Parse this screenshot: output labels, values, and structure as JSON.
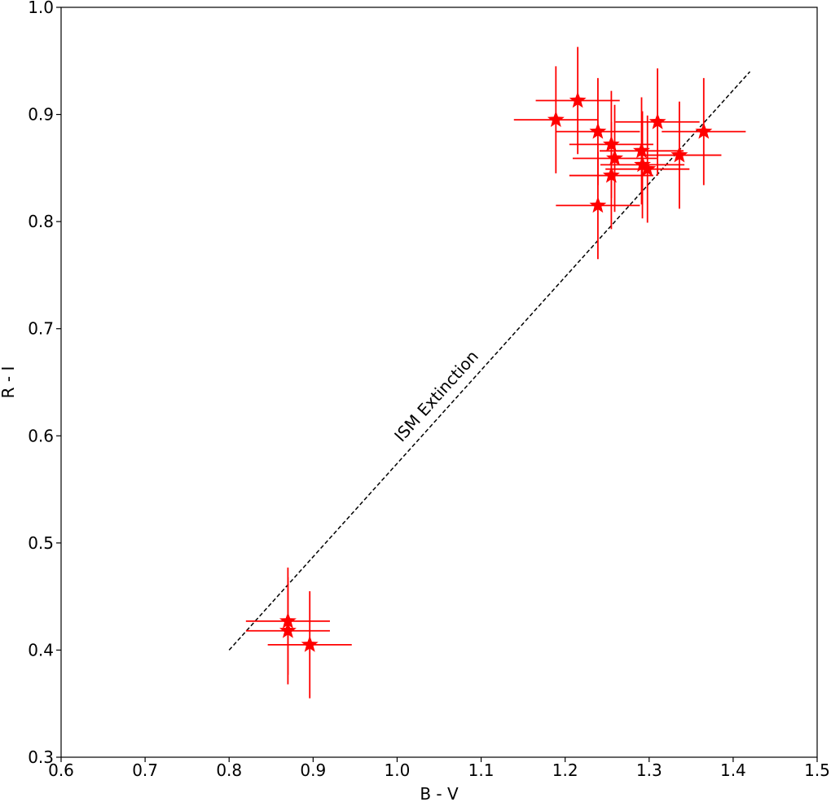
{
  "chart_data": {
    "type": "scatter",
    "xlabel": "B - V",
    "ylabel": "R - I",
    "x": [
      1.189,
      1.215,
      1.239,
      1.255,
      1.259,
      1.255,
      1.239,
      1.291,
      1.292,
      1.298,
      1.31,
      1.336,
      1.365,
      0.87,
      0.87,
      0.896
    ],
    "values": [
      0.895,
      0.913,
      0.884,
      0.872,
      0.859,
      0.843,
      0.815,
      0.866,
      0.853,
      0.849,
      0.893,
      0.862,
      0.884,
      0.427,
      0.418,
      0.405
    ],
    "xerr": [
      0.05,
      0.05,
      0.05,
      0.05,
      0.05,
      0.05,
      0.05,
      0.05,
      0.05,
      0.05,
      0.05,
      0.05,
      0.05,
      0.05,
      0.05,
      0.05
    ],
    "yerr": [
      0.05,
      0.05,
      0.05,
      0.05,
      0.05,
      0.05,
      0.05,
      0.05,
      0.05,
      0.05,
      0.05,
      0.05,
      0.05,
      0.05,
      0.05,
      0.05
    ],
    "color": "#ff0000",
    "reference_line": {
      "label": "ISM Extinction",
      "x": [
        0.8,
        1.42
      ],
      "y": [
        0.4,
        0.94
      ],
      "color": "#000000"
    },
    "xlim": [
      0.6,
      1.5
    ],
    "ylim": [
      0.3,
      1.0
    ],
    "xticks": [
      0.6,
      0.7,
      0.8,
      0.9,
      {
        "value": 1.0,
        "label": "1.0"
      },
      1.1,
      1.2,
      1.3,
      1.4,
      1.5
    ],
    "yticks": [
      0.3,
      0.4,
      0.5,
      0.6,
      0.7,
      0.8,
      0.9,
      {
        "value": 1.0,
        "label": "1.0"
      }
    ],
    "grid": false
  }
}
